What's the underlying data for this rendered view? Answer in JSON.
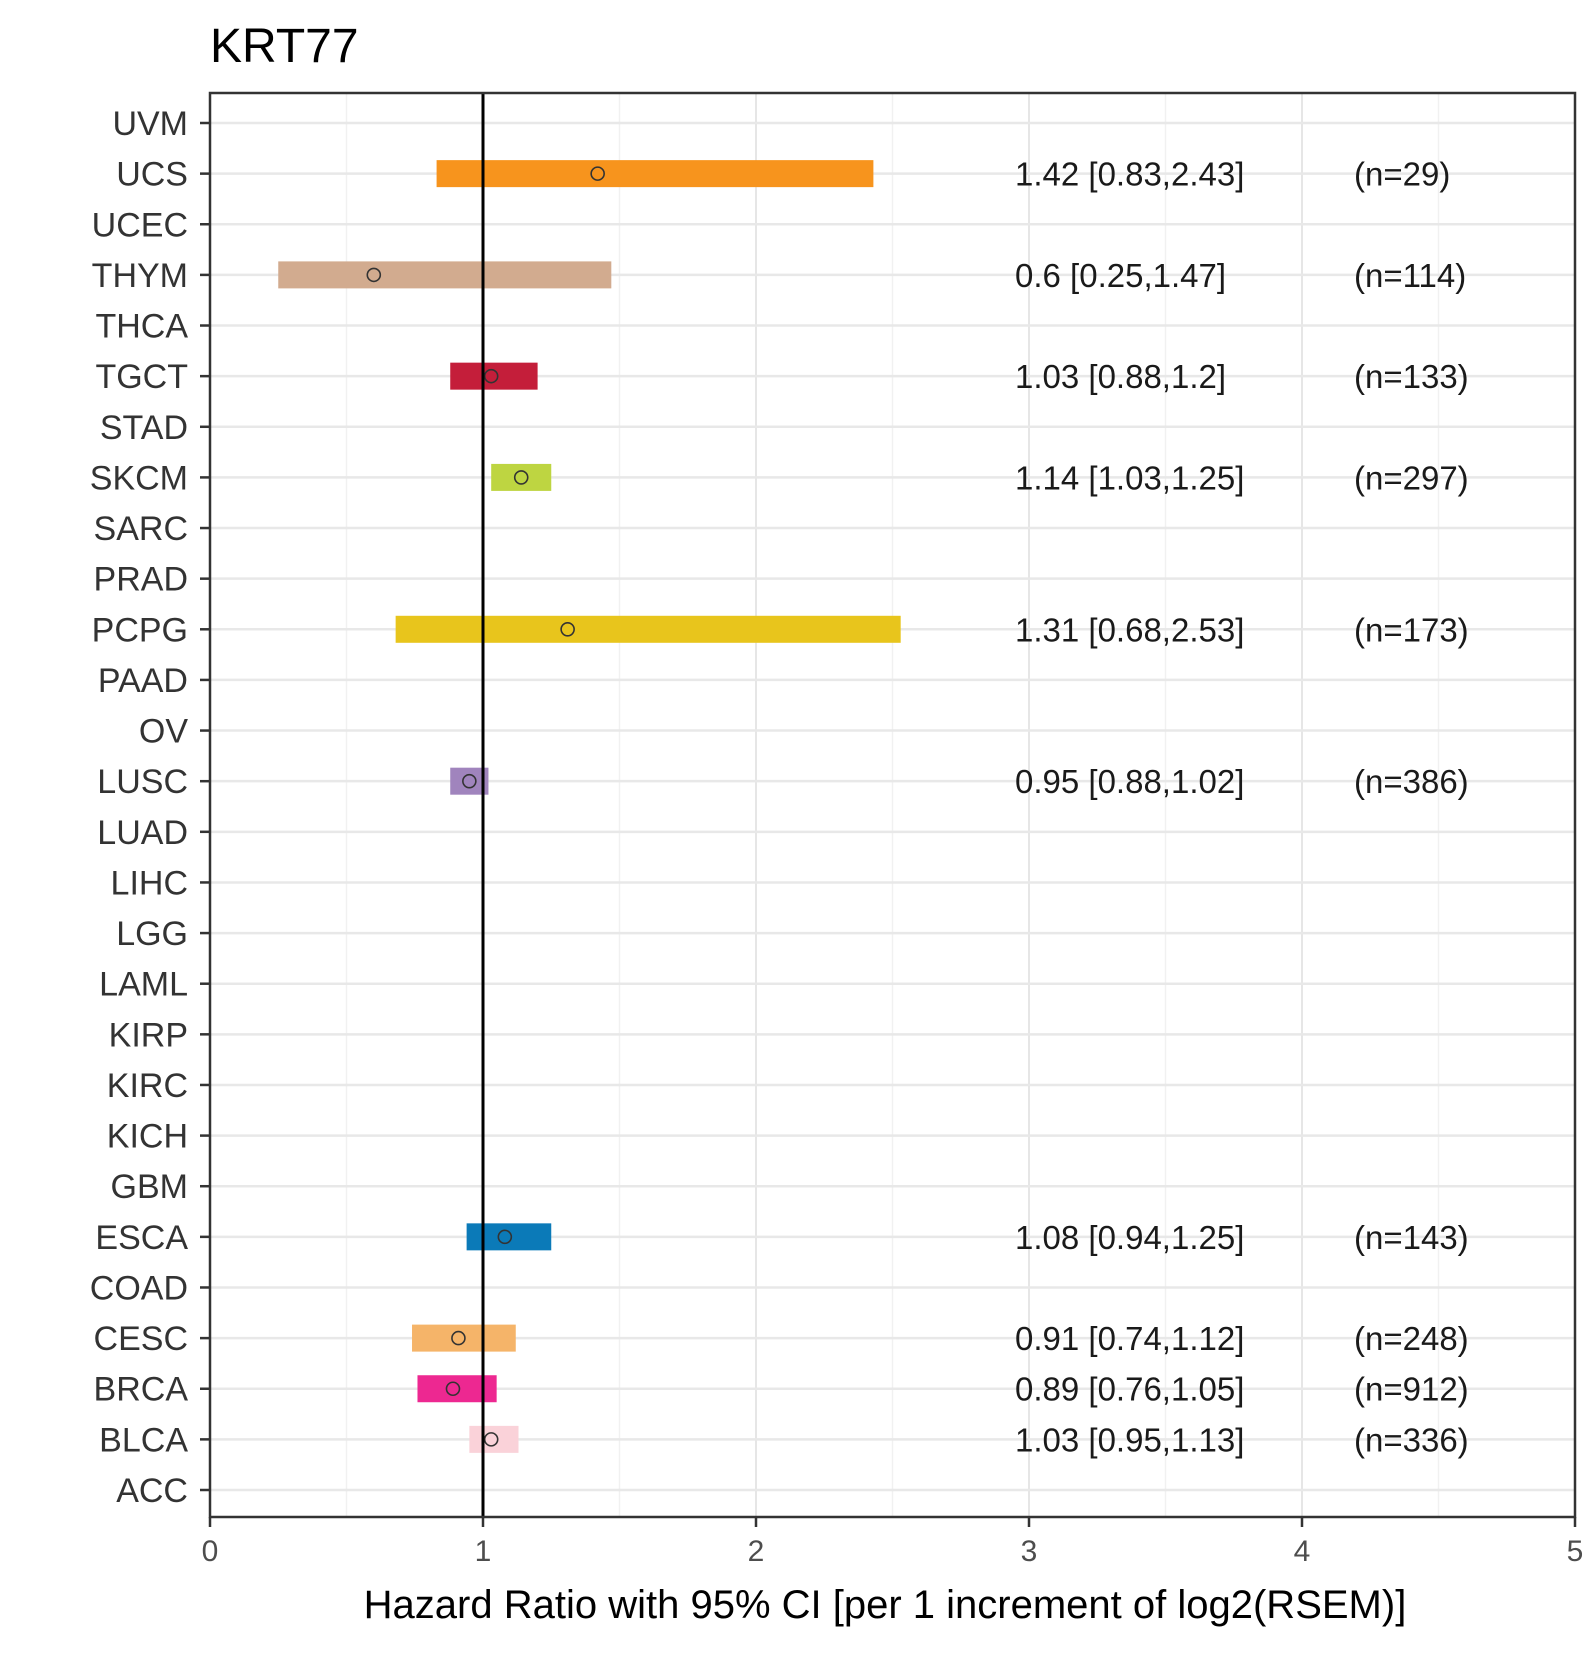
{
  "chart_data": {
    "type": "forest",
    "title": "KRT77",
    "xlabel": "Hazard Ratio with 95% CI [per 1 increment of log2(RSEM)]",
    "ylabel": "",
    "xlim": [
      0,
      5
    ],
    "x_ticks": [
      0,
      1,
      2,
      3,
      4,
      5
    ],
    "reference_line": 1,
    "grid": true,
    "categories": [
      "UVM",
      "UCS",
      "UCEC",
      "THYM",
      "THCA",
      "TGCT",
      "STAD",
      "SKCM",
      "SARC",
      "PRAD",
      "PCPG",
      "PAAD",
      "OV",
      "LUSC",
      "LUAD",
      "LIHC",
      "LGG",
      "LAML",
      "KIRP",
      "KIRC",
      "KICH",
      "GBM",
      "ESCA",
      "COAD",
      "CESC",
      "BRCA",
      "BLCA",
      "ACC"
    ],
    "rows": [
      {
        "cancer": "UCS",
        "hr": 1.42,
        "lower": 0.83,
        "upper": 2.43,
        "label": "1.42 [0.83,2.43]",
        "n": "(n=29)",
        "color": "#F7941D"
      },
      {
        "cancer": "THYM",
        "hr": 0.6,
        "lower": 0.25,
        "upper": 1.47,
        "label": "0.6 [0.25,1.47]",
        "n": "(n=114)",
        "color": "#D2AB8F"
      },
      {
        "cancer": "TGCT",
        "hr": 1.03,
        "lower": 0.88,
        "upper": 1.2,
        "label": "1.03 [0.88,1.2]",
        "n": "(n=133)",
        "color": "#C41E3A"
      },
      {
        "cancer": "SKCM",
        "hr": 1.14,
        "lower": 1.03,
        "upper": 1.25,
        "label": "1.14 [1.03,1.25]",
        "n": "(n=297)",
        "color": "#BED541"
      },
      {
        "cancer": "PCPG",
        "hr": 1.31,
        "lower": 0.68,
        "upper": 2.53,
        "label": "1.31 [0.68,2.53]",
        "n": "(n=173)",
        "color": "#E8C51C"
      },
      {
        "cancer": "LUSC",
        "hr": 0.95,
        "lower": 0.88,
        "upper": 1.02,
        "label": "0.95 [0.88,1.02]",
        "n": "(n=386)",
        "color": "#A084BD"
      },
      {
        "cancer": "ESCA",
        "hr": 1.08,
        "lower": 0.94,
        "upper": 1.25,
        "label": "1.08 [0.94,1.25]",
        "n": "(n=143)",
        "color": "#0B7AB8"
      },
      {
        "cancer": "CESC",
        "hr": 0.91,
        "lower": 0.74,
        "upper": 1.12,
        "label": "0.91 [0.74,1.12]",
        "n": "(n=248)",
        "color": "#F5B469"
      },
      {
        "cancer": "BRCA",
        "hr": 0.89,
        "lower": 0.76,
        "upper": 1.05,
        "label": "0.89 [0.76,1.05]",
        "n": "(n=912)",
        "color": "#ED2891"
      },
      {
        "cancer": "BLCA",
        "hr": 1.03,
        "lower": 0.95,
        "upper": 1.13,
        "label": "1.03 [0.95,1.13]",
        "n": "(n=336)",
        "color": "#FAD2D9"
      }
    ]
  }
}
